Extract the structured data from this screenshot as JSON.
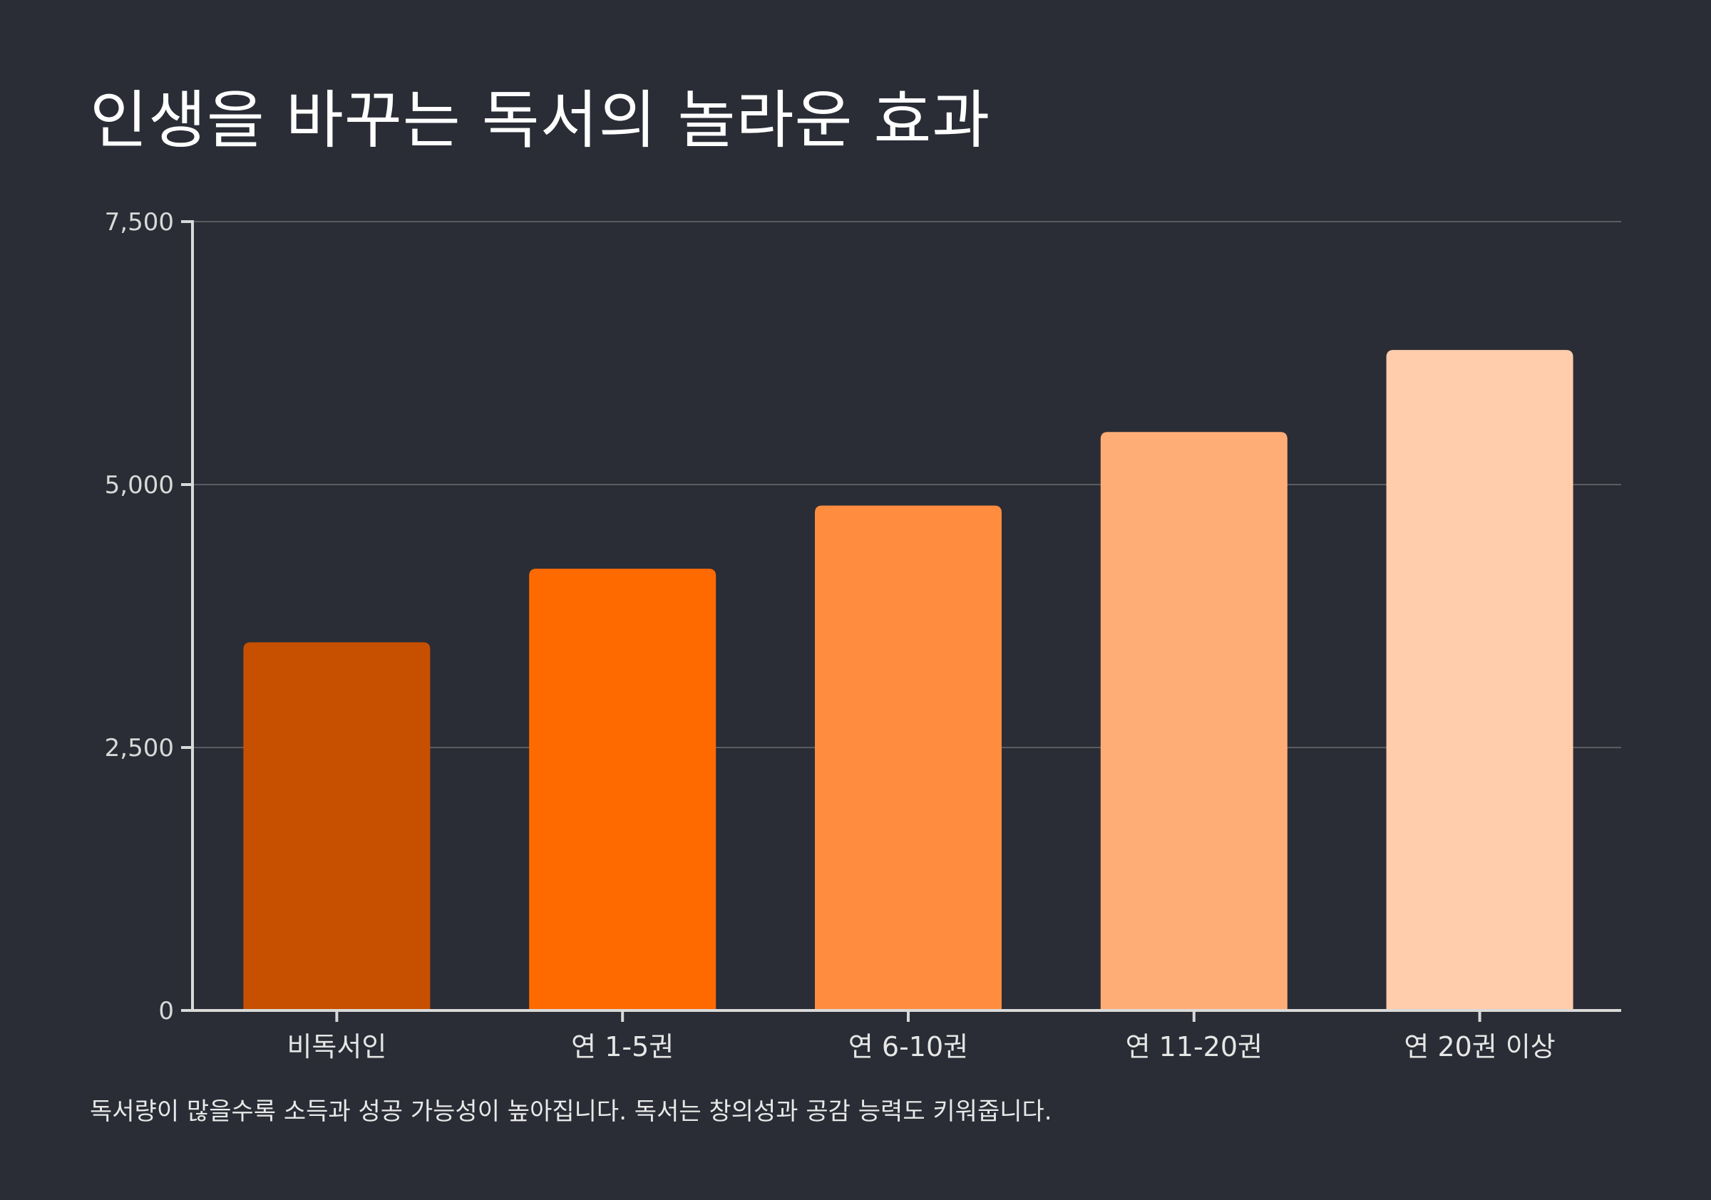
{
  "title": "인생을 바꾸는 독서의 놀라운 효과",
  "note": "독서량이 많을수록 소득과 성공 가능성이 높아집니다. 독서는 창의성과 공감 능력도 키워줍니다.",
  "chart_data": {
    "type": "bar",
    "categories": [
      "비독서인",
      "연 1-5권",
      "연 6-10권",
      "연 11-20권",
      "연 20권 이상"
    ],
    "values": [
      3500,
      4200,
      4800,
      5500,
      6280
    ],
    "colors": [
      "#c75000",
      "#ff6a00",
      "#ff8c3f",
      "#ffad77",
      "#ffcdab"
    ],
    "ylim": [
      0,
      7500
    ],
    "yticks": [
      0,
      2500,
      5000,
      7500
    ],
    "ytick_labels": [
      "0",
      "2,500",
      "5,000",
      "7,500"
    ],
    "grid": true,
    "gridlines": [
      2500,
      5000,
      7500
    ],
    "xlabel": "",
    "ylabel": ""
  }
}
